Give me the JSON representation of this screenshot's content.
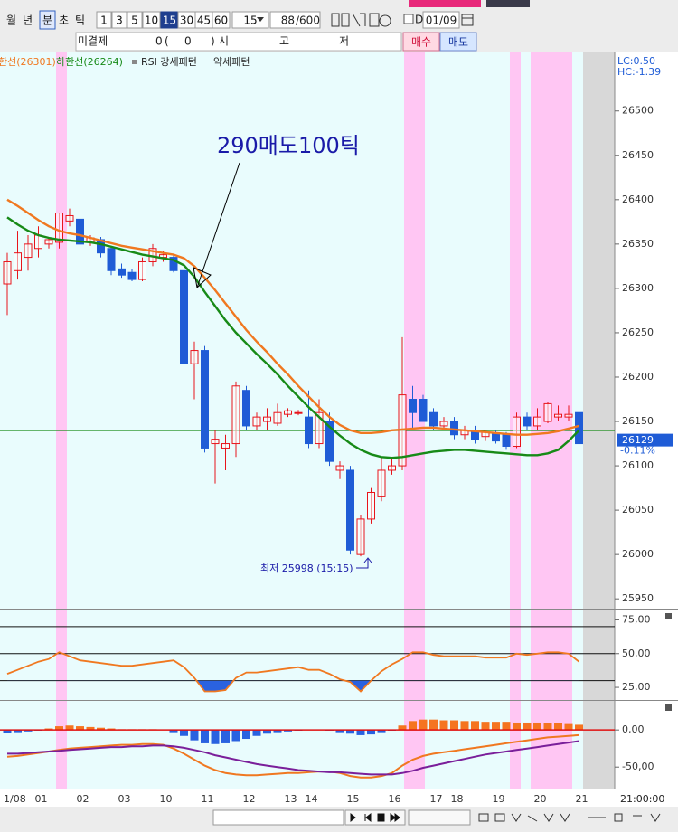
{
  "toolbar": {
    "periods": [
      "월",
      "년",
      "분",
      "초",
      "틱"
    ],
    "intervals": [
      "1",
      "3",
      "5",
      "10",
      "15",
      "30",
      "45",
      "60"
    ],
    "interval_select": "15",
    "count": "88",
    "count_max": "/600",
    "date_mode": "D",
    "date": "01/09"
  },
  "quote_bar": {
    "open_interest_label": "미결제",
    "oi": "0",
    "paren_open": "(",
    "oi_change": "0",
    "paren_close": ")",
    "open_label": "시",
    "high_label": "고",
    "low_label": "저",
    "buy": "매수",
    "sell": "매도"
  },
  "chart_data": [
    {
      "type": "candlestick",
      "categories": [
        "1/08",
        null,
        null,
        "01",
        null,
        null,
        null,
        "02",
        null,
        null,
        null,
        "03",
        null,
        null,
        null,
        "10",
        null,
        null,
        null,
        "11",
        null,
        null,
        null,
        "12",
        null,
        null,
        null,
        "13",
        null,
        "14",
        null,
        null,
        null,
        "15",
        null,
        null,
        null,
        "16",
        null,
        null,
        null,
        "17",
        null,
        "18",
        null,
        null,
        null,
        "19",
        null,
        null,
        null,
        "20",
        null,
        null,
        null,
        "21"
      ],
      "open": [
        26305,
        26320,
        26335,
        26345,
        26350,
        26352,
        26376,
        26378,
        26352,
        26355,
        26345,
        26322,
        26318,
        26310,
        26330,
        26335,
        26335,
        26320,
        26215,
        26230,
        26125,
        26120,
        26125,
        26185,
        26145,
        26150,
        26148,
        26158,
        26160,
        26155,
        26125,
        26150,
        26095,
        26095,
        26000,
        26040,
        26065,
        26095,
        26100,
        26175,
        26175,
        26160,
        26145,
        26150,
        26135,
        26140,
        26133,
        26137,
        26135,
        26122,
        26155,
        26145,
        26150,
        26155,
        26155,
        26160
      ],
      "high": [
        26340,
        26365,
        26360,
        26370,
        26358,
        26385,
        26390,
        26390,
        26360,
        26358,
        26348,
        26328,
        26322,
        26335,
        26350,
        26342,
        26338,
        26325,
        26240,
        26235,
        26140,
        26135,
        26195,
        26190,
        26160,
        26165,
        26170,
        26165,
        26163,
        26185,
        26175,
        26160,
        26105,
        26100,
        26045,
        26075,
        26110,
        26110,
        26245,
        26190,
        26180,
        26165,
        26155,
        26155,
        26145,
        26145,
        26140,
        26140,
        26138,
        26160,
        26160,
        26165,
        26172,
        26168,
        26168,
        26162
      ],
      "low": [
        26270,
        26310,
        26320,
        26335,
        26345,
        26345,
        26370,
        26345,
        26348,
        26335,
        26315,
        26312,
        26308,
        26308,
        26325,
        26330,
        26318,
        26210,
        26175,
        26115,
        26080,
        26095,
        26110,
        26140,
        26140,
        26140,
        26145,
        26155,
        26157,
        26120,
        26120,
        26100,
        26085,
        26000,
        25998,
        26035,
        26060,
        26090,
        26095,
        26140,
        26150,
        26140,
        26140,
        26130,
        26130,
        26125,
        26128,
        26125,
        26118,
        26120,
        26140,
        26140,
        26148,
        26150,
        26150,
        26120
      ],
      "close": [
        26330,
        26340,
        26350,
        26360,
        26355,
        26385,
        26382,
        26350,
        26357,
        26340,
        26320,
        26315,
        26310,
        26330,
        26345,
        26338,
        26320,
        26215,
        26230,
        26120,
        26130,
        26125,
        26190,
        26145,
        26155,
        26155,
        26160,
        26162,
        26160,
        26125,
        26160,
        26105,
        26100,
        26005,
        26040,
        26070,
        26095,
        26100,
        26180,
        26160,
        26150,
        26145,
        26150,
        26135,
        26140,
        26130,
        26138,
        26128,
        26122,
        26155,
        26145,
        26155,
        26170,
        26158,
        26158,
        26125
      ],
      "up_color": "#e8141b",
      "down_color": "#1f5cd6",
      "series": [
        {
          "name": "한선(26301)",
          "color": "#f07820",
          "values": [
            26400,
            26393,
            26385,
            26377,
            26370,
            26365,
            26362,
            26360,
            26357,
            26354,
            26351,
            26348,
            26346,
            26344,
            26342,
            26340,
            26338,
            26334,
            26325,
            26312,
            26298,
            26283,
            26268,
            26253,
            26240,
            26228,
            26215,
            26203,
            26190,
            26178,
            26166,
            26155,
            26146,
            26140,
            26137,
            26137,
            26138,
            26140,
            26141,
            26142,
            26143,
            26143,
            26142,
            26141,
            26140,
            26139,
            26138,
            26137,
            26136,
            26135,
            26135,
            26136,
            26137,
            26139,
            26142,
            26145
          ]
        },
        {
          "name": "하한선(26264)",
          "color": "#178a17",
          "values": [
            26380,
            26372,
            26365,
            26360,
            26357,
            26355,
            26354,
            26353,
            26352,
            26350,
            26347,
            26344,
            26341,
            26338,
            26336,
            26334,
            26332,
            26326,
            26313,
            26296,
            26280,
            26264,
            26250,
            26238,
            26226,
            26215,
            26203,
            26190,
            26178,
            26166,
            26155,
            26144,
            26134,
            26125,
            26118,
            26113,
            26110,
            26109,
            26110,
            26112,
            26114,
            26116,
            26117,
            26118,
            26118,
            26117,
            26116,
            26115,
            26114,
            26113,
            26112,
            26112,
            26114,
            26118,
            26128,
            26140
          ]
        }
      ],
      "legend_extra": [
        "RSI 강세패턴",
        "약세패턴"
      ],
      "ylim": [
        25940,
        26566
      ],
      "yticks": [
        25950,
        26000,
        26050,
        26100,
        26150,
        26200,
        26250,
        26300,
        26350,
        26400,
        26450,
        26500
      ],
      "lc_label": "LC:0.50",
      "hc_label": "HC:-1.39",
      "last_price": 26129,
      "last_change": "-0.11%",
      "annotation": "290매도100틱",
      "low_note": "최저 25998 (15:15)",
      "x_end_label": "21:00:00"
    },
    {
      "type": "line",
      "color": "#f07820",
      "values": [
        35,
        38,
        41,
        44,
        46,
        51,
        48,
        45,
        44,
        43,
        42,
        41,
        41,
        42,
        43,
        44,
        45,
        40,
        32,
        22,
        22,
        23,
        32,
        36,
        36,
        37,
        38,
        39,
        40,
        38,
        38,
        35,
        31,
        29,
        22,
        30,
        37,
        42,
        46,
        51,
        51,
        49,
        48,
        48,
        48,
        48,
        47,
        47,
        47,
        50,
        49,
        50,
        51,
        51,
        50,
        44
      ],
      "ylim": [
        17,
        82
      ],
      "yticks": [
        {
          "value": 75,
          "label": "75,00"
        },
        {
          "value": 50,
          "label": "50,00"
        },
        {
          "value": 25,
          "label": "25,00"
        }
      ],
      "ref_lines": [
        70,
        50,
        30
      ],
      "fill_below": 30,
      "fill_color": "#2a62e0"
    },
    {
      "type": "macd",
      "histogram": {
        "values": [
          -4,
          -3,
          -2,
          -1,
          2,
          5,
          6,
          5,
          4,
          3,
          2,
          1,
          1,
          1,
          1,
          0,
          -3,
          -8,
          -14,
          -18,
          -19,
          -18,
          -15,
          -12,
          -8,
          -5,
          -3,
          -2,
          -1,
          0,
          0,
          -1,
          -3,
          -5,
          -7,
          -6,
          -3,
          -1,
          6,
          12,
          14,
          14,
          13,
          13,
          12,
          12,
          11,
          11,
          11,
          10,
          10,
          10,
          9,
          9,
          8,
          7
        ],
        "up_color": "#f57420",
        "down_color": "#2a62e0"
      },
      "series": [
        {
          "color": "#f07820",
          "values": [
            -36,
            -35,
            -33,
            -31,
            -29,
            -27,
            -25,
            -24,
            -23,
            -22,
            -21,
            -20,
            -20,
            -19,
            -19,
            -20,
            -25,
            -32,
            -40,
            -48,
            -54,
            -58,
            -60,
            -61,
            -61,
            -60,
            -59,
            -58,
            -58,
            -57,
            -56,
            -56,
            -58,
            -62,
            -64,
            -64,
            -62,
            -58,
            -48,
            -40,
            -35,
            -32,
            -30,
            -28,
            -26,
            -24,
            -22,
            -20,
            -18,
            -16,
            -14,
            -12,
            -10,
            -9,
            -8,
            -7
          ]
        },
        {
          "color": "#7a1f9a",
          "values": [
            -32,
            -32,
            -31,
            -30,
            -29,
            -28,
            -27,
            -26,
            -25,
            -24,
            -23,
            -23,
            -22,
            -22,
            -21,
            -21,
            -22,
            -24,
            -27,
            -30,
            -34,
            -37,
            -40,
            -43,
            -46,
            -48,
            -50,
            -52,
            -54,
            -55,
            -56,
            -57,
            -57,
            -58,
            -59,
            -60,
            -60,
            -60,
            -58,
            -55,
            -51,
            -48,
            -45,
            -42,
            -39,
            -36,
            -33,
            -31,
            -29,
            -27,
            -25,
            -23,
            -21,
            -19,
            -17,
            -15
          ]
        }
      ],
      "zero_line_color": "#e01010",
      "ylim": [
        -79,
        38
      ],
      "yticks": [
        {
          "value": 0,
          "label": "0,00"
        },
        {
          "value": -50,
          "label": "-50,00"
        }
      ]
    }
  ]
}
